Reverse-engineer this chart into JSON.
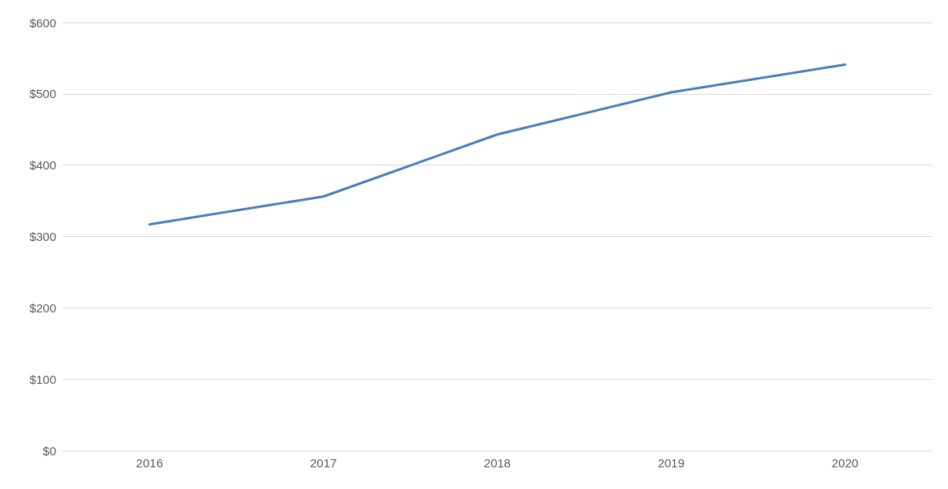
{
  "chart_data": {
    "type": "line",
    "categories": [
      "2016",
      "2017",
      "2018",
      "2019",
      "2020"
    ],
    "series": [
      {
        "color": "#4a7ebb",
        "values": [
          317,
          356,
          443,
          502,
          541
        ]
      }
    ],
    "ylim": [
      0,
      600
    ],
    "yticks": [
      {
        "value": 0,
        "label": "$0"
      },
      {
        "value": 100,
        "label": "$100"
      },
      {
        "value": 200,
        "label": "$200"
      },
      {
        "value": 300,
        "label": "$300"
      },
      {
        "value": 400,
        "label": "$400"
      },
      {
        "value": 500,
        "label": "$500"
      },
      {
        "value": 600,
        "label": "$600"
      }
    ],
    "grid": "y",
    "marker": "none",
    "line_style": "solid"
  }
}
